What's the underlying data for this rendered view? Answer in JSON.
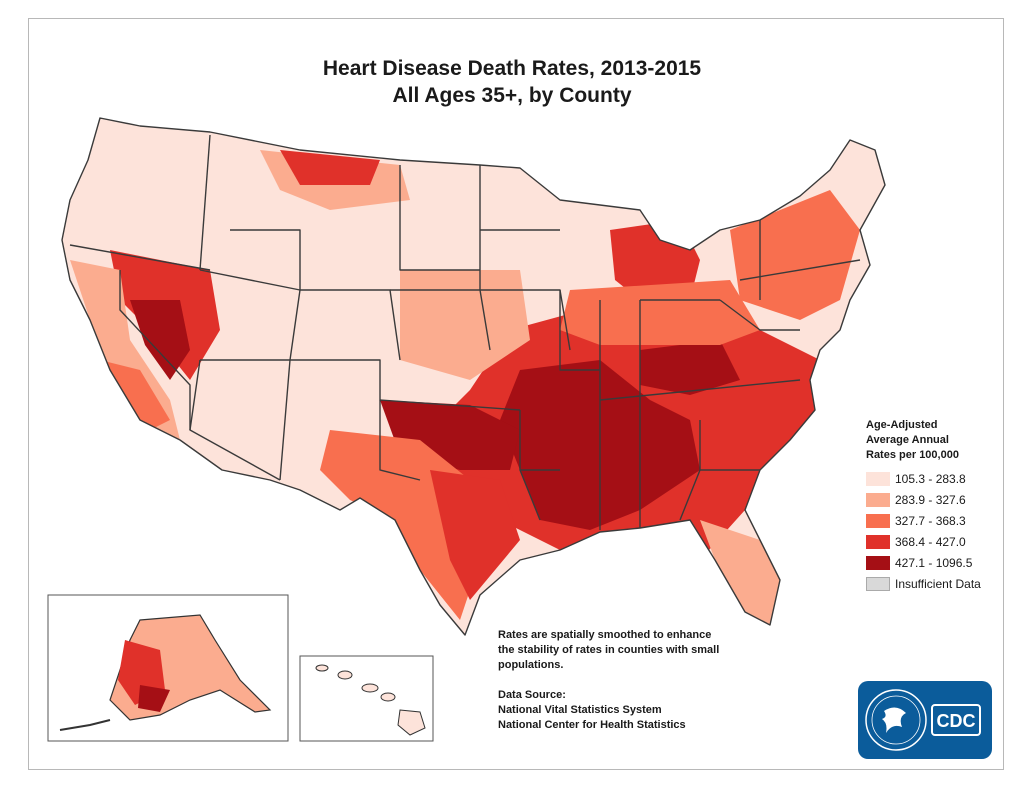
{
  "title": {
    "line1": "Heart Disease Death Rates, 2013-2015",
    "line2": "All Ages 35+, by County"
  },
  "legend": {
    "title_lines": [
      "Age-Adjusted",
      "Average Annual",
      "Rates per 100,000"
    ],
    "items": [
      {
        "label": "105.3 - 283.8",
        "color": "#fde3da"
      },
      {
        "label": "283.9 - 327.6",
        "color": "#fbac8f"
      },
      {
        "label": "327.7 - 368.3",
        "color": "#f86f4f"
      },
      {
        "label": "368.4 - 427.0",
        "color": "#e0312a"
      },
      {
        "label": "427.1 - 1096.5",
        "color": "#a50f15"
      },
      {
        "label": "Insufficient Data",
        "color": "#d9d9d9"
      }
    ]
  },
  "note": {
    "lines": [
      "Rates are spatially smoothed to enhance",
      "the stability of rates in counties with small",
      "populations."
    ]
  },
  "source": {
    "label": "Data Source:",
    "lines": [
      "National Vital Statistics System",
      "National Center for Health Statistics"
    ]
  },
  "logo": {
    "text": "CDC",
    "color": "#0b5c9b"
  },
  "insets": [
    "alaska-inset",
    "hawaii-inset"
  ]
}
